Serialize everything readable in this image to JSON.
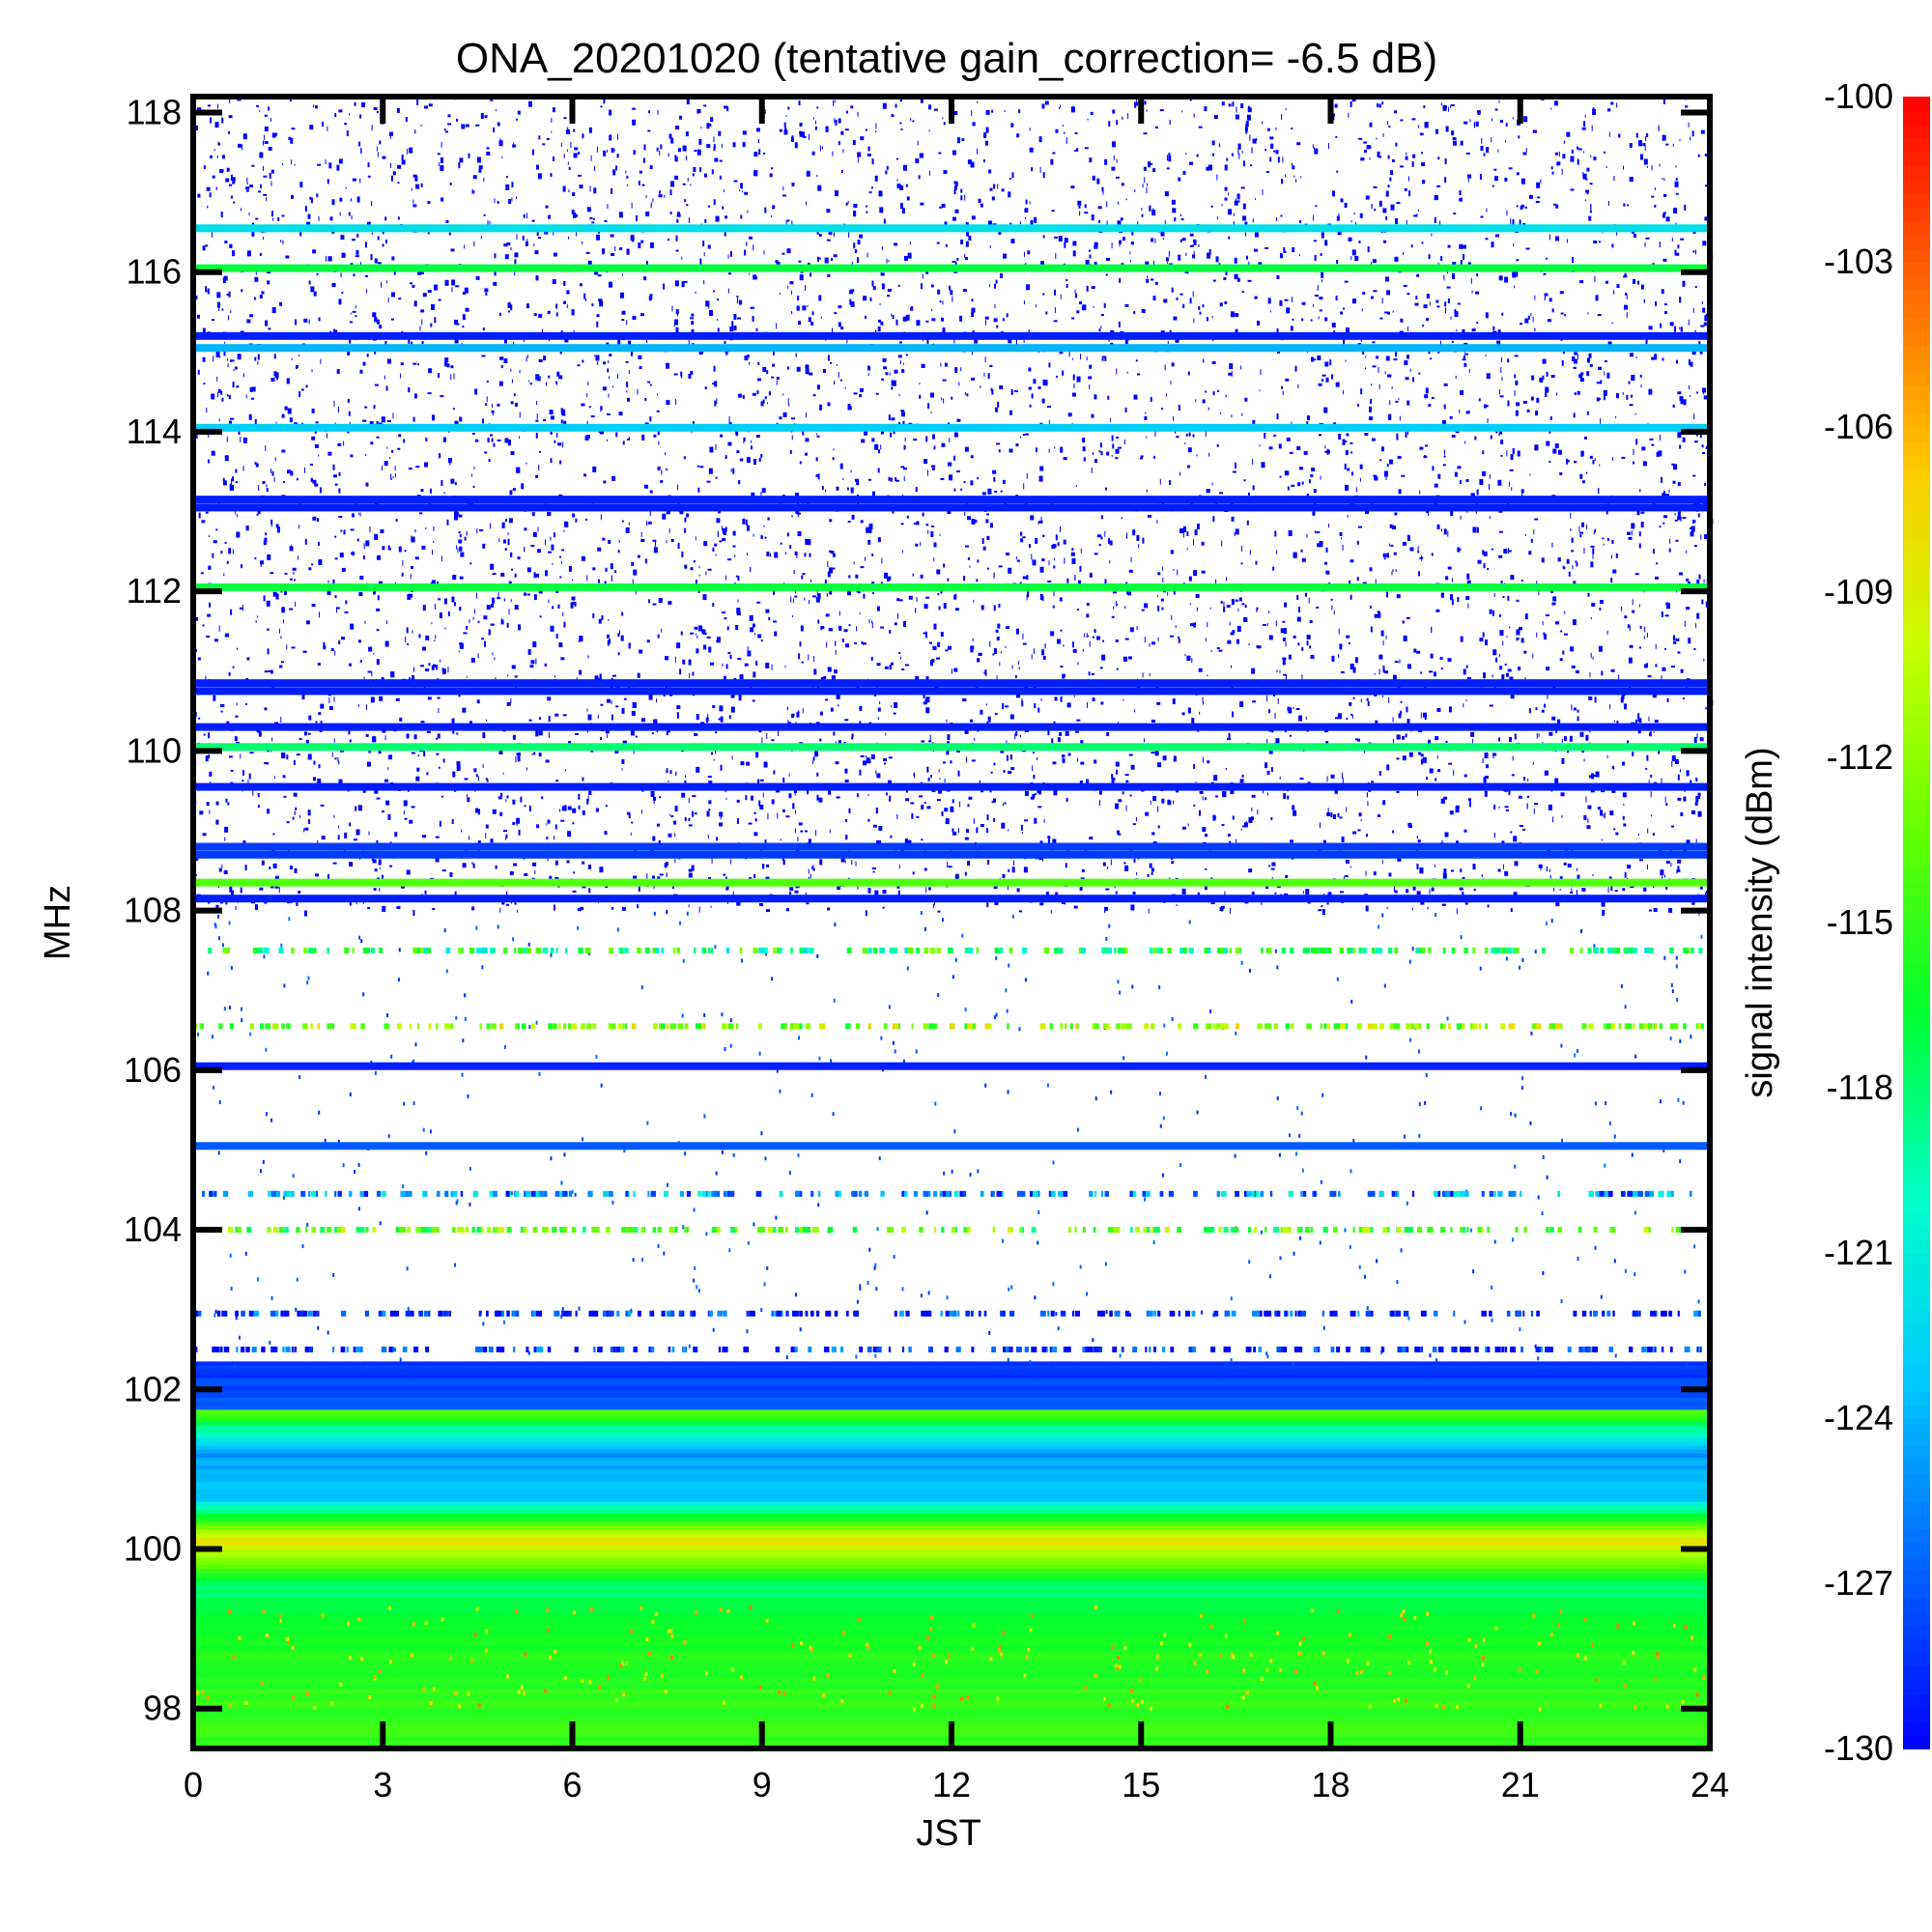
{
  "chart_data": {
    "type": "heatmap",
    "title": "ONA_20201020 (tentative gain_correction= -6.5 dB)",
    "xlabel": "JST",
    "ylabel": "MHz",
    "colorbar_label": "signal intensity (dBm)",
    "xlim": [
      0,
      24
    ],
    "ylim": [
      97.5,
      118.2
    ],
    "x_ticks": [
      "0",
      "3",
      "6",
      "9",
      "12",
      "15",
      "18",
      "21",
      "24"
    ],
    "y_ticks": [
      "98",
      "100",
      "102",
      "104",
      "106",
      "108",
      "110",
      "112",
      "114",
      "116",
      "118"
    ],
    "colorbar_range": [
      -130,
      -100
    ],
    "colorbar_ticks": [
      "-100",
      "-103",
      "-106",
      "-109",
      "-112",
      "-115",
      "-118",
      "-121",
      "-124",
      "-127",
      "-130"
    ],
    "colormap": [
      "#0000ff",
      "#0064ff",
      "#00c8ff",
      "#00ffc8",
      "#00ff32",
      "#64ff00",
      "#c8ff00",
      "#ffc800",
      "#ff6400",
      "#ff0000"
    ],
    "continuous_bands": [
      {
        "freq_mhz": 116.55,
        "level_dbm": -122
      },
      {
        "freq_mhz": 116.05,
        "level_dbm": -117
      },
      {
        "freq_mhz": 115.2,
        "level_dbm": -129
      },
      {
        "freq_mhz": 115.05,
        "level_dbm": -124
      },
      {
        "freq_mhz": 114.05,
        "level_dbm": -123
      },
      {
        "freq_mhz": 113.15,
        "level_dbm": -129
      },
      {
        "freq_mhz": 113.05,
        "level_dbm": -129
      },
      {
        "freq_mhz": 112.05,
        "level_dbm": -117
      },
      {
        "freq_mhz": 110.85,
        "level_dbm": -129
      },
      {
        "freq_mhz": 110.75,
        "level_dbm": -129
      },
      {
        "freq_mhz": 110.3,
        "level_dbm": -129
      },
      {
        "freq_mhz": 110.05,
        "level_dbm": -118
      },
      {
        "freq_mhz": 109.55,
        "level_dbm": -129
      },
      {
        "freq_mhz": 108.8,
        "level_dbm": -128
      },
      {
        "freq_mhz": 108.7,
        "level_dbm": -128
      },
      {
        "freq_mhz": 108.35,
        "level_dbm": -114
      },
      {
        "freq_mhz": 108.15,
        "level_dbm": -129
      },
      {
        "freq_mhz": 106.05,
        "level_dbm": -129
      },
      {
        "freq_mhz": 105.05,
        "level_dbm": -127
      }
    ],
    "noise_floor_region": {
      "from_mhz": 108.0,
      "to_mhz": 118.2,
      "level_dbm": -130
    },
    "partial_bands": [
      {
        "freq_mhz": 107.5,
        "level_dbm": -117
      },
      {
        "freq_mhz": 106.55,
        "level_dbm": -112
      },
      {
        "freq_mhz": 104.45,
        "level_dbm": -125
      },
      {
        "freq_mhz": 104.0,
        "level_dbm": -114
      },
      {
        "freq_mhz": 102.95,
        "level_dbm": -129
      },
      {
        "freq_mhz": 102.5,
        "level_dbm": -129
      }
    ],
    "low_freq_gradient": [
      {
        "freq_mhz": 102.2,
        "level_dbm": -128
      },
      {
        "freq_mhz": 101.75,
        "level_dbm": -127
      },
      {
        "freq_mhz": 101.7,
        "level_dbm": -114
      },
      {
        "freq_mhz": 101.2,
        "level_dbm": -125
      },
      {
        "freq_mhz": 100.6,
        "level_dbm": -123
      },
      {
        "freq_mhz": 100.1,
        "level_dbm": -108
      },
      {
        "freq_mhz": 99.5,
        "level_dbm": -118
      },
      {
        "freq_mhz": 98.8,
        "level_dbm": -116
      },
      {
        "freq_mhz": 98.0,
        "level_dbm": -115
      }
    ]
  }
}
